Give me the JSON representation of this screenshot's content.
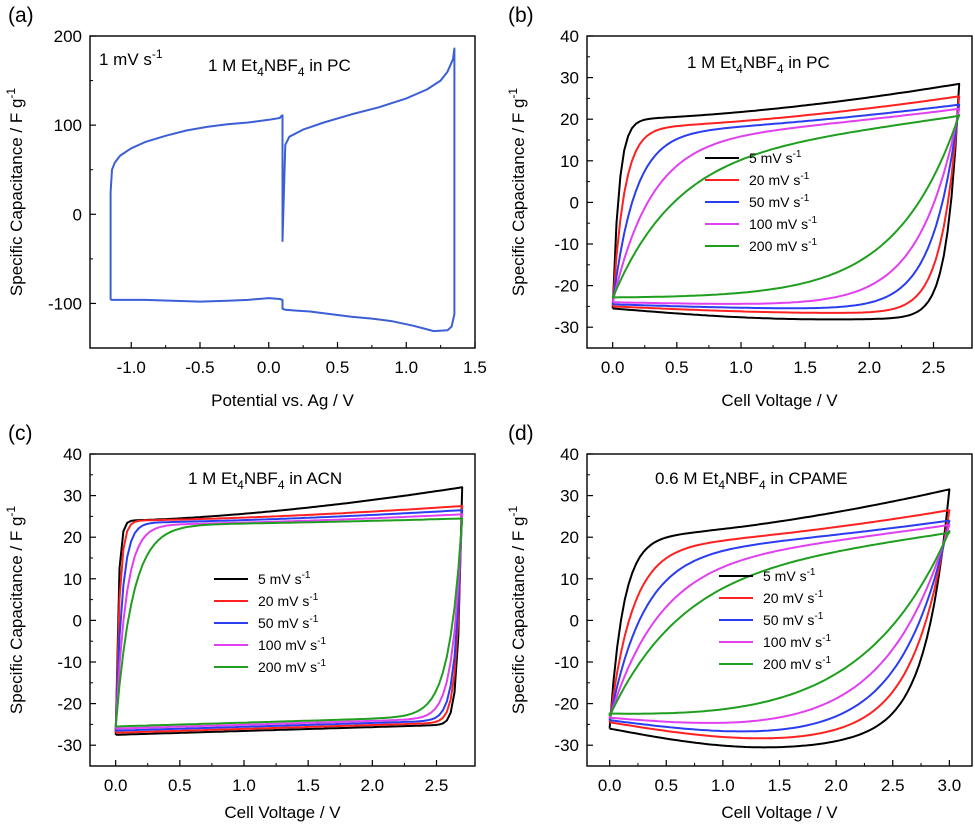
{
  "chart_data": [
    {
      "type": "line",
      "panel_label": "(a)",
      "title": "1 M Et4NBF4 in PC",
      "title_parts": [
        "1 M Et",
        "4",
        "NBF",
        "4",
        " in PC"
      ],
      "scan_rate_label": [
        "1 mV s",
        "-1"
      ],
      "xlabel": "Potential vs. Ag / V",
      "ylabel": "Specific Capacitance / F g-1",
      "ylabel_parts": [
        "Specific Capacitance / F g",
        "-1"
      ],
      "xlim": [
        -1.3,
        1.5
      ],
      "ylim": [
        -150,
        200
      ],
      "xticks": [
        -1.0,
        -0.5,
        0.0,
        0.5,
        1.0,
        1.5
      ],
      "xtick_labels": [
        "-1.0",
        "-0.5",
        "0.0",
        "0.5",
        "1.0",
        "1.5"
      ],
      "yticks": [
        -100,
        0,
        100,
        200
      ],
      "ytick_labels": [
        "-100",
        "0",
        "100",
        "200"
      ],
      "series": [
        {
          "color": "#3c5fd6",
          "x": [
            -1.15,
            -1.15,
            -1.14,
            -1.12,
            -1.08,
            -1.0,
            -0.9,
            -0.75,
            -0.6,
            -0.45,
            -0.3,
            -0.15,
            0.0,
            0.08,
            0.09,
            0.1,
            0.1,
            0.12,
            0.15,
            0.25,
            0.4,
            0.6,
            0.8,
            1.0,
            1.15,
            1.25,
            1.3,
            1.34,
            1.35,
            1.35,
            1.33,
            1.3,
            1.2,
            1.05,
            0.9,
            0.75,
            0.6,
            0.45,
            0.3,
            0.2,
            0.12,
            0.1,
            0.1,
            0.08,
            0.0,
            -0.15,
            -0.3,
            -0.5,
            -0.7,
            -0.9,
            -1.05,
            -1.13,
            -1.15
          ],
          "y": [
            -96,
            25,
            50,
            58,
            66,
            74,
            81,
            88,
            94,
            98,
            101,
            103,
            106,
            108,
            110,
            111,
            -30,
            78,
            87,
            95,
            103,
            112,
            120,
            130,
            140,
            150,
            160,
            174,
            186,
            -112,
            -126,
            -130,
            -131,
            -125,
            -120,
            -117,
            -115,
            -112,
            -109,
            -108,
            -107,
            -106,
            -96,
            -95,
            -94,
            -96,
            -97,
            -98,
            -97,
            -96,
            -96,
            -96,
            -96
          ]
        }
      ]
    },
    {
      "type": "line",
      "panel_label": "(b)",
      "title": "1 M Et4NBF4 in PC",
      "title_parts": [
        "1 M Et",
        "4",
        "NBF",
        "4",
        " in PC"
      ],
      "xlabel": "Cell Voltage / V",
      "ylabel": "Specific Capacitance / F g-1",
      "ylabel_parts": [
        "Specific Capacitance / F g",
        "-1"
      ],
      "xlim": [
        -0.2,
        2.8
      ],
      "ylim": [
        -35,
        40
      ],
      "xticks": [
        0.0,
        0.5,
        1.0,
        1.5,
        2.0,
        2.5
      ],
      "xtick_labels": [
        "0.0",
        "0.5",
        "1.0",
        "1.5",
        "2.0",
        "2.5"
      ],
      "yticks": [
        -30,
        -20,
        -10,
        0,
        10,
        20,
        30,
        40
      ],
      "ytick_labels": [
        "-30",
        "-20",
        "-10",
        "0",
        "10",
        "20",
        "30",
        "40"
      ],
      "legend_position": "center-left",
      "series": [
        {
          "name": "5 mV s-1",
          "name_parts": [
            "5 mV s",
            "-1"
          ],
          "color": "#000000",
          "vmax": 2.7,
          "top_start": 20,
          "top_end": 28.5,
          "bot_start": -25.5,
          "bot_end": -27.5,
          "tau": 0.05,
          "taud": 0.09,
          "sag": 1.5,
          "rise_rate": 2.2
        },
        {
          "name": "20 mV s-1",
          "name_parts": [
            "20 mV s",
            "-1"
          ],
          "color": "#ff2020",
          "vmax": 2.7,
          "top_start": 18,
          "top_end": 25.5,
          "bot_start": -25,
          "bot_end": -26.5,
          "tau": 0.09,
          "taud": 0.13,
          "sag": 0.7,
          "rise_rate": 1.9
        },
        {
          "name": "50 mV s-1",
          "name_parts": [
            "50 mV s",
            "-1"
          ],
          "color": "#2a3df0",
          "vmax": 2.7,
          "top_start": 17,
          "top_end": 23.5,
          "bot_start": -24.5,
          "bot_end": -25.5,
          "tau": 0.17,
          "taud": 0.2,
          "sag": 0.5,
          "rise_rate": 1.5
        },
        {
          "name": "100 mV s-1",
          "name_parts": [
            "100 mV s",
            "-1"
          ],
          "color": "#e040f0",
          "vmax": 2.7,
          "top_start": 16,
          "top_end": 22.5,
          "bot_start": -24,
          "bot_end": -24.5,
          "tau": 0.3,
          "taud": 0.3,
          "sag": 0.4,
          "rise_rate": 1.1
        },
        {
          "name": "200 mV s-1",
          "name_parts": [
            "200 mV s",
            "-1"
          ],
          "color": "#1f9e1f",
          "vmax": 2.7,
          "top_start": 14,
          "top_end": 21,
          "bot_start": -23,
          "bot_end": -22.5,
          "tau": 0.5,
          "taud": 0.48,
          "sag": 0.2,
          "rise_rate": 0.75
        }
      ]
    },
    {
      "type": "line",
      "panel_label": "(c)",
      "title": "1 M Et4NBF4 in ACN",
      "title_parts": [
        "1 M Et",
        "4",
        "NBF",
        "4",
        " in ACN"
      ],
      "xlabel": "Cell Voltage / V",
      "ylabel": "Specific Capacitance / F g-1",
      "ylabel_parts": [
        "Specific Capacitance / F g",
        "-1"
      ],
      "xlim": [
        -0.2,
        2.8
      ],
      "ylim": [
        -35,
        40
      ],
      "xticks": [
        0.0,
        0.5,
        1.0,
        1.5,
        2.0,
        2.5
      ],
      "xtick_labels": [
        "0.0",
        "0.5",
        "1.0",
        "1.5",
        "2.0",
        "2.5"
      ],
      "yticks": [
        -30,
        -20,
        -10,
        0,
        10,
        20,
        30,
        40
      ],
      "ytick_labels": [
        "-30",
        "-20",
        "-10",
        "0",
        "10",
        "20",
        "30",
        "40"
      ],
      "legend_position": "center",
      "series": [
        {
          "name": "5 mV s-1",
          "name_parts": [
            "5 mV s",
            "-1"
          ],
          "color": "#000000",
          "vmax": 2.7,
          "top_start": 24,
          "top_end": 32,
          "bot_start": -27.5,
          "bot_end": -25,
          "tau": 0.02,
          "taud": 0.03,
          "sag": 0,
          "rise_rate": 4.5
        },
        {
          "name": "20 mV s-1",
          "name_parts": [
            "20 mV s",
            "-1"
          ],
          "color": "#ff2020",
          "vmax": 2.7,
          "top_start": 24,
          "top_end": 27.5,
          "bot_start": -27,
          "bot_end": -24.5,
          "tau": 0.03,
          "taud": 0.04,
          "sag": 0,
          "rise_rate": 4.0
        },
        {
          "name": "50 mV s-1",
          "name_parts": [
            "50 mV s",
            "-1"
          ],
          "color": "#2a3df0",
          "vmax": 2.7,
          "top_start": 23.5,
          "top_end": 26.5,
          "bot_start": -26.5,
          "bot_end": -24,
          "tau": 0.05,
          "taud": 0.05,
          "sag": 0,
          "rise_rate": 3.4
        },
        {
          "name": "100 mV s-1",
          "name_parts": [
            "100 mV s",
            "-1"
          ],
          "color": "#e040f0",
          "vmax": 2.7,
          "top_start": 23,
          "top_end": 25.5,
          "bot_start": -26,
          "bot_end": -23.5,
          "tau": 0.08,
          "taud": 0.07,
          "sag": 0,
          "rise_rate": 2.7
        },
        {
          "name": "200 mV s-1",
          "name_parts": [
            "200 mV s",
            "-1"
          ],
          "color": "#1f9e1f",
          "vmax": 2.7,
          "top_start": 23,
          "top_end": 24.5,
          "bot_start": -25.5,
          "bot_end": -23,
          "tau": 0.13,
          "taud": 0.1,
          "sag": 0,
          "rise_rate": 2.0
        }
      ]
    },
    {
      "type": "line",
      "panel_label": "(d)",
      "title": "0.6 M Et4NBF4 in CPAME",
      "title_parts": [
        "0.6 M Et",
        "4",
        "NBF",
        "4",
        " in CPAME"
      ],
      "xlabel": "Cell Voltage / V",
      "ylabel": "Specific Capacitance / F g-1",
      "ylabel_parts": [
        "Specific Capacitance / F g",
        "-1"
      ],
      "xlim": [
        -0.2,
        3.2
      ],
      "ylim": [
        -35,
        40
      ],
      "xticks": [
        0.0,
        0.5,
        1.0,
        1.5,
        2.0,
        2.5,
        3.0
      ],
      "xtick_labels": [
        "0.0",
        "0.5",
        "1.0",
        "1.5",
        "2.0",
        "2.5",
        "3.0"
      ],
      "yticks": [
        -30,
        -20,
        -10,
        0,
        10,
        20,
        30,
        40
      ],
      "ytick_labels": [
        "-30",
        "-20",
        "-10",
        "0",
        "10",
        "20",
        "30",
        "40"
      ],
      "legend_position": "center",
      "series": [
        {
          "name": "5 mV s-1",
          "name_parts": [
            "5 mV s",
            "-1"
          ],
          "color": "#000000",
          "vmax": 3.0,
          "top_start": 20,
          "top_end": 31.5,
          "bot_start": -26,
          "bot_end": -24,
          "tau": 0.12,
          "taud": 0.2,
          "sag": 5.5,
          "rise_rate": 2.0
        },
        {
          "name": "20 mV s-1",
          "name_parts": [
            "20 mV s",
            "-1"
          ],
          "color": "#ff2020",
          "vmax": 3.0,
          "top_start": 18,
          "top_end": 26.5,
          "bot_start": -24.5,
          "bot_end": -23.5,
          "tau": 0.2,
          "taud": 0.28,
          "sag": 4.5,
          "rise_rate": 1.6
        },
        {
          "name": "50 mV s-1",
          "name_parts": [
            "50 mV s",
            "-1"
          ],
          "color": "#2a3df0",
          "vmax": 3.0,
          "top_start": 17,
          "top_end": 24,
          "bot_start": -24,
          "bot_end": -23.5,
          "tau": 0.3,
          "taud": 0.38,
          "sag": 3.5,
          "rise_rate": 1.3
        },
        {
          "name": "100 mV s-1",
          "name_parts": [
            "100 mV s",
            "-1"
          ],
          "color": "#e040f0",
          "vmax": 3.0,
          "top_start": 16,
          "top_end": 23,
          "bot_start": -23.5,
          "bot_end": -23,
          "tau": 0.45,
          "taud": 0.5,
          "sag": 2.5,
          "rise_rate": 1.0
        },
        {
          "name": "200 mV s-1",
          "name_parts": [
            "200 mV s",
            "-1"
          ],
          "color": "#1f9e1f",
          "vmax": 3.0,
          "top_start": 15,
          "top_end": 21.5,
          "bot_start": -23,
          "bot_end": -22,
          "tau": 0.65,
          "taud": 0.7,
          "sag": 1.5,
          "rise_rate": 0.7
        }
      ]
    }
  ]
}
